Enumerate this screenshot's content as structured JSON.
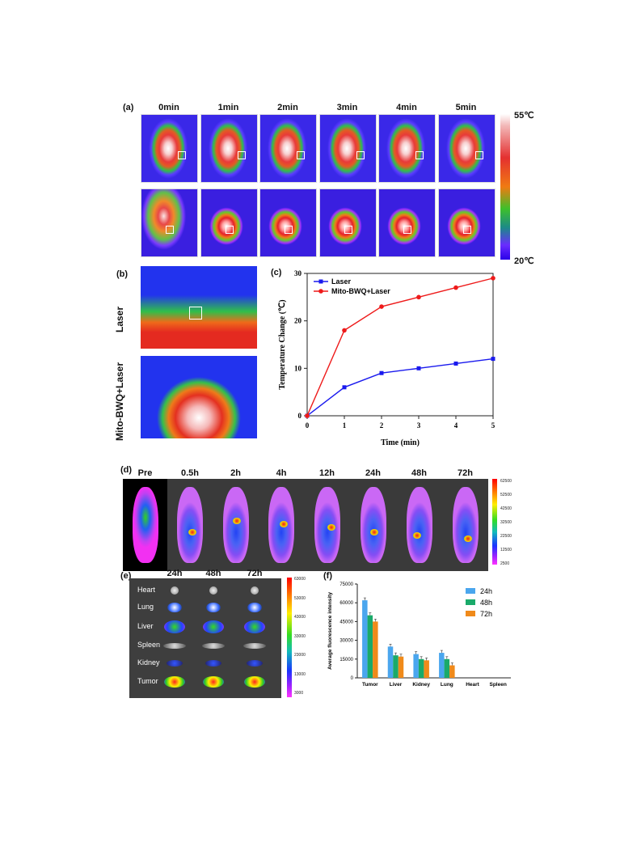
{
  "panels": {
    "a": "(a)",
    "b": "(b)",
    "c": "(c)",
    "d": "(d)",
    "e": "(e)",
    "f": "(f)"
  },
  "panel_a": {
    "time_labels": [
      "0min",
      "1min",
      "2min",
      "3min",
      "4min",
      "5min"
    ],
    "colorbar_max": "55℃",
    "colorbar_min": "20℃"
  },
  "panel_b": {
    "row_labels": [
      "Laser",
      "Mito-BWQ+Laser"
    ]
  },
  "panel_d": {
    "time_labels": [
      "Pre",
      "0.5h",
      "2h",
      "4h",
      "12h",
      "24h",
      "48h",
      "72h"
    ],
    "colorbar_ticks": [
      "62500",
      "52500",
      "42500",
      "32500",
      "22500",
      "12500",
      "2500"
    ]
  },
  "panel_e": {
    "time_labels": [
      "24h",
      "48h",
      "72h"
    ],
    "organ_labels": [
      "Heart",
      "Lung",
      "Liver",
      "Spleen",
      "Kidney",
      "Tumor"
    ],
    "colorbar_ticks": [
      "63000",
      "53000",
      "43000",
      "33000",
      "23000",
      "13000",
      "3000"
    ]
  },
  "chart_data": [
    {
      "id": "c",
      "type": "line",
      "xlabel": "Time (min)",
      "ylabel": "Temperature Change (℃)",
      "x": [
        0,
        1,
        2,
        3,
        4,
        5
      ],
      "xlim": [
        0,
        5
      ],
      "ylim": [
        0,
        30
      ],
      "xticks": [
        "0",
        "1",
        "2",
        "3",
        "4",
        "5"
      ],
      "yticks": [
        "0",
        "10",
        "20",
        "30"
      ],
      "legend_position": "top-left",
      "grid": false,
      "series": [
        {
          "name": "Laser",
          "color": "#1a1aee",
          "marker": "square",
          "values": [
            0,
            6,
            9,
            10,
            11,
            12
          ]
        },
        {
          "name": "Mito-BWQ+Laser",
          "color": "#ee1a1a",
          "marker": "circle",
          "values": [
            0,
            18,
            23,
            25,
            27,
            29
          ]
        }
      ]
    },
    {
      "id": "f",
      "type": "bar",
      "ylabel": "Average fluorescence intensity",
      "categories": [
        "Tumor",
        "Liver",
        "Kidney",
        "Lung",
        "Heart",
        "Spleen"
      ],
      "ylim": [
        0,
        75000
      ],
      "yticks": [
        "75000",
        "60000",
        "45000",
        "30000",
        "15000",
        "0"
      ],
      "legend_position": "top-right",
      "grid": false,
      "series": [
        {
          "name": "24h",
          "color": "#4aa6ee",
          "values": [
            62000,
            25000,
            19000,
            20000,
            0,
            0
          ]
        },
        {
          "name": "48h",
          "color": "#1aaa6a",
          "values": [
            50000,
            18000,
            15000,
            15000,
            0,
            0
          ]
        },
        {
          "name": "72h",
          "color": "#f08a1a",
          "values": [
            45000,
            17000,
            14000,
            10000,
            0,
            0
          ]
        }
      ]
    }
  ]
}
